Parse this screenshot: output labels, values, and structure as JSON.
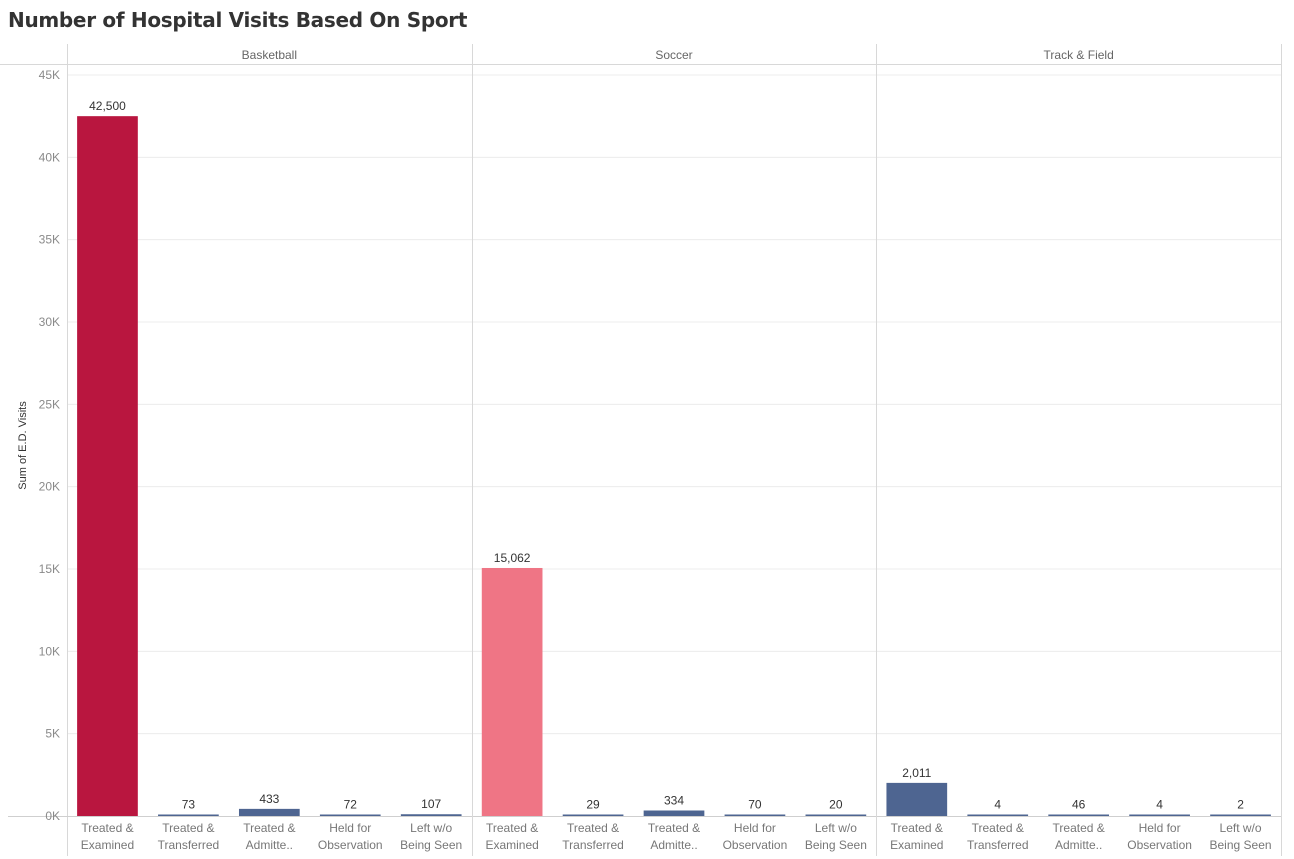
{
  "title": "Number of Hospital Visits Based On Sport",
  "chart_data": {
    "type": "bar",
    "ylabel": "Sum of E.D. Visits",
    "ylim": [
      0,
      45000
    ],
    "yticks": [
      0,
      5000,
      10000,
      15000,
      20000,
      25000,
      30000,
      35000,
      40000,
      45000
    ],
    "ytick_labels": [
      "0K",
      "5K",
      "10K",
      "15K",
      "20K",
      "25K",
      "30K",
      "35K",
      "40K",
      "45K"
    ],
    "grid": true,
    "panels": [
      {
        "name": "Basketball",
        "categories": [
          [
            "Treated &",
            "Examined"
          ],
          [
            "Treated &",
            "Transferred"
          ],
          [
            "Treated &",
            "Admitte.."
          ],
          [
            "Held for",
            "Observation"
          ],
          [
            "Left w/o",
            "Being Seen"
          ]
        ],
        "values": [
          42500,
          73,
          433,
          72,
          107
        ],
        "value_labels": [
          "42,500",
          "73",
          "433",
          "72",
          "107"
        ],
        "colors": [
          "#b9163f",
          "#4e6591",
          "#4e6591",
          "#4e6591",
          "#4e6591"
        ]
      },
      {
        "name": "Soccer",
        "categories": [
          [
            "Treated &",
            "Examined"
          ],
          [
            "Treated &",
            "Transferred"
          ],
          [
            "Treated &",
            "Admitte.."
          ],
          [
            "Held for",
            "Observation"
          ],
          [
            "Left w/o",
            "Being Seen"
          ]
        ],
        "values": [
          15062,
          29,
          334,
          70,
          20
        ],
        "value_labels": [
          "15,062",
          "29",
          "334",
          "70",
          "20"
        ],
        "colors": [
          "#ef7585",
          "#4e6591",
          "#4e6591",
          "#4e6591",
          "#4e6591"
        ]
      },
      {
        "name": "Track & Field",
        "categories": [
          [
            "Treated &",
            "Examined"
          ],
          [
            "Treated &",
            "Transferred"
          ],
          [
            "Treated &",
            "Admitte.."
          ],
          [
            "Held for",
            "Observation"
          ],
          [
            "Left w/o",
            "Being Seen"
          ]
        ],
        "values": [
          2011,
          4,
          46,
          4,
          2
        ],
        "value_labels": [
          "2,011",
          "4",
          "46",
          "4",
          "2"
        ],
        "colors": [
          "#4e6591",
          "#4e6591",
          "#4e6591",
          "#4e6591",
          "#4e6591"
        ]
      }
    ]
  }
}
